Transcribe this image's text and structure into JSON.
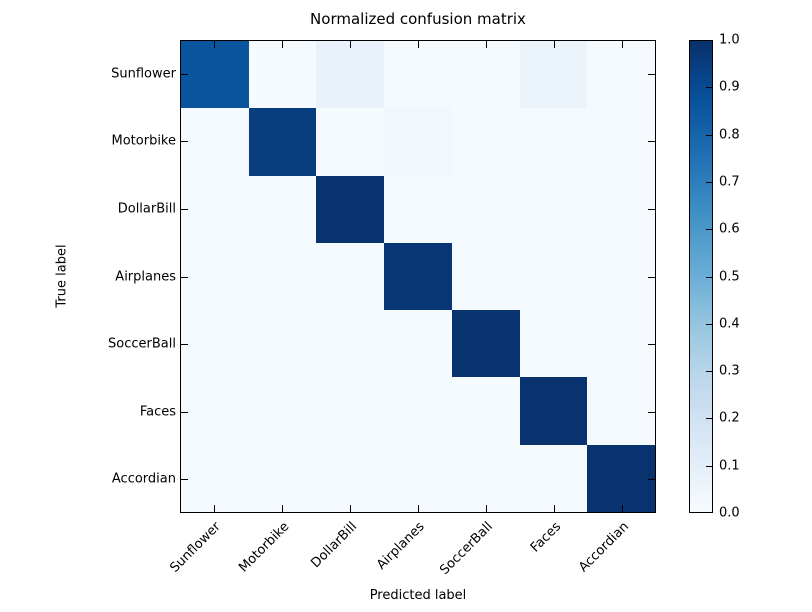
{
  "chart_data": {
    "type": "heatmap",
    "title": "Normalized confusion matrix",
    "xlabel": "Predicted label",
    "ylabel": "True label",
    "categories": [
      "Sunflower",
      "Motorbike",
      "DollarBill",
      "Airplanes",
      "SoccerBall",
      "Faces",
      "Accordian"
    ],
    "matrix": [
      [
        0.86,
        0.01,
        0.07,
        0.01,
        0.01,
        0.06,
        0.01
      ],
      [
        0.01,
        0.95,
        0.01,
        0.03,
        0.01,
        0.01,
        0.01
      ],
      [
        0.01,
        0.01,
        0.99,
        0.01,
        0.01,
        0.01,
        0.01
      ],
      [
        0.01,
        0.01,
        0.01,
        0.98,
        0.01,
        0.01,
        0.01
      ],
      [
        0.01,
        0.01,
        0.01,
        0.01,
        0.99,
        0.01,
        0.01
      ],
      [
        0.01,
        0.01,
        0.01,
        0.01,
        0.01,
        0.99,
        0.01
      ],
      [
        0.01,
        0.01,
        0.01,
        0.01,
        0.01,
        0.01,
        0.99
      ]
    ],
    "colormap": "Blues",
    "colormap_anchors": [
      {
        "pos": 0.0,
        "hex": "#f7fbff"
      },
      {
        "pos": 0.125,
        "hex": "#deebf7"
      },
      {
        "pos": 0.25,
        "hex": "#c6dbef"
      },
      {
        "pos": 0.375,
        "hex": "#9ecae1"
      },
      {
        "pos": 0.5,
        "hex": "#6baed6"
      },
      {
        "pos": 0.625,
        "hex": "#4292c6"
      },
      {
        "pos": 0.75,
        "hex": "#2171b5"
      },
      {
        "pos": 0.875,
        "hex": "#08519c"
      },
      {
        "pos": 1.0,
        "hex": "#08306b"
      }
    ],
    "legend_position": "colorbar-right",
    "grid": false,
    "colorbar": {
      "min": 0.0,
      "max": 1.0,
      "tick_labels": [
        "1.0",
        "0.9",
        "0.8",
        "0.7",
        "0.6",
        "0.5",
        "0.4",
        "0.3",
        "0.2",
        "0.1",
        "0.0"
      ]
    },
    "axis_color": "#000000",
    "background_color": "#ffffff"
  }
}
